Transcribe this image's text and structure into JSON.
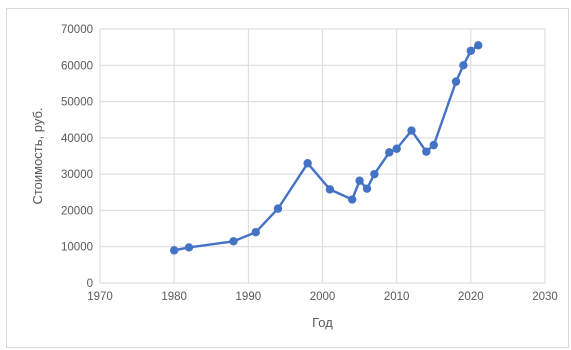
{
  "chart_data": {
    "type": "scatter",
    "title": "",
    "xlabel": "Год",
    "ylabel": "Стоимость, руб.",
    "xlim": [
      1970,
      2030
    ],
    "ylim": [
      0,
      70000
    ],
    "x_ticks": [
      "1970",
      "1980",
      "1990",
      "2000",
      "2010",
      "2020",
      "2030"
    ],
    "y_ticks": [
      "0",
      "10000",
      "20000",
      "30000",
      "40000",
      "50000",
      "60000",
      "70000"
    ],
    "grid": true,
    "legend": "none",
    "series": [
      {
        "color": "#4472c4",
        "line": true,
        "points": [
          {
            "x": 1980,
            "y": 9000
          },
          {
            "x": 1982,
            "y": 9800
          },
          {
            "x": 1988,
            "y": 11500
          },
          {
            "x": 1991,
            "y": 14000
          },
          {
            "x": 1994,
            "y": 20500
          },
          {
            "x": 1998,
            "y": 33000
          },
          {
            "x": 2001,
            "y": 25800
          },
          {
            "x": 2004,
            "y": 23000
          },
          {
            "x": 2005,
            "y": 28200
          },
          {
            "x": 2006,
            "y": 26000
          },
          {
            "x": 2007,
            "y": 30000
          },
          {
            "x": 2009,
            "y": 36000
          },
          {
            "x": 2010,
            "y": 37000
          },
          {
            "x": 2012,
            "y": 42000
          },
          {
            "x": 2014,
            "y": 36200
          },
          {
            "x": 2015,
            "y": 38000
          },
          {
            "x": 2018,
            "y": 55500
          },
          {
            "x": 2019,
            "y": 60000
          },
          {
            "x": 2020,
            "y": 64000
          },
          {
            "x": 2021,
            "y": 65500
          }
        ]
      }
    ],
    "colors": {
      "gridline": "#d9d9d9",
      "text": "#595959",
      "series": "#4472c4"
    }
  }
}
